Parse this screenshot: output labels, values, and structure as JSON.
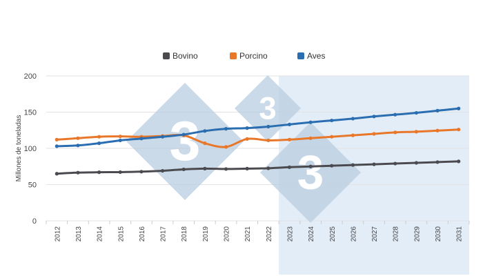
{
  "chart_data": {
    "type": "line",
    "ylabel": "Millones de toneladas",
    "xlabel": "",
    "ylim": [
      0,
      200
    ],
    "yticks": [
      0,
      50,
      100,
      150,
      200
    ],
    "grid": true,
    "legend_position": "top-center",
    "categories": [
      "2012",
      "2013",
      "2014",
      "2015",
      "2016",
      "2017",
      "2018",
      "2019",
      "2020",
      "2021",
      "2022",
      "2023",
      "2024",
      "2025",
      "2026",
      "2027",
      "2028",
      "2029",
      "2030",
      "2031"
    ],
    "projection_shaded_from": "2023",
    "series": [
      {
        "name": "Bovino",
        "color": "#4a4a4f",
        "values": [
          65,
          66.5,
          67,
          67.2,
          67.8,
          69,
          71,
          72,
          71.5,
          72,
          72.5,
          74,
          75,
          76,
          77,
          78,
          79,
          80,
          81,
          82
        ]
      },
      {
        "name": "Porcino",
        "color": "#e8772a",
        "values": [
          112,
          114,
          116,
          116.5,
          116,
          117,
          118,
          107,
          102,
          113,
          111,
          112,
          114,
          116,
          118,
          120,
          122,
          123,
          124.5,
          126
        ]
      },
      {
        "name": "Aves",
        "color": "#2a6db0",
        "values": [
          103,
          104,
          107,
          111,
          113.5,
          116,
          119,
          124,
          127,
          128,
          130,
          133,
          136,
          138.5,
          141,
          144,
          146.5,
          149,
          152,
          155
        ]
      }
    ]
  },
  "watermark": {
    "text": "333",
    "color": "#b9cde0"
  }
}
